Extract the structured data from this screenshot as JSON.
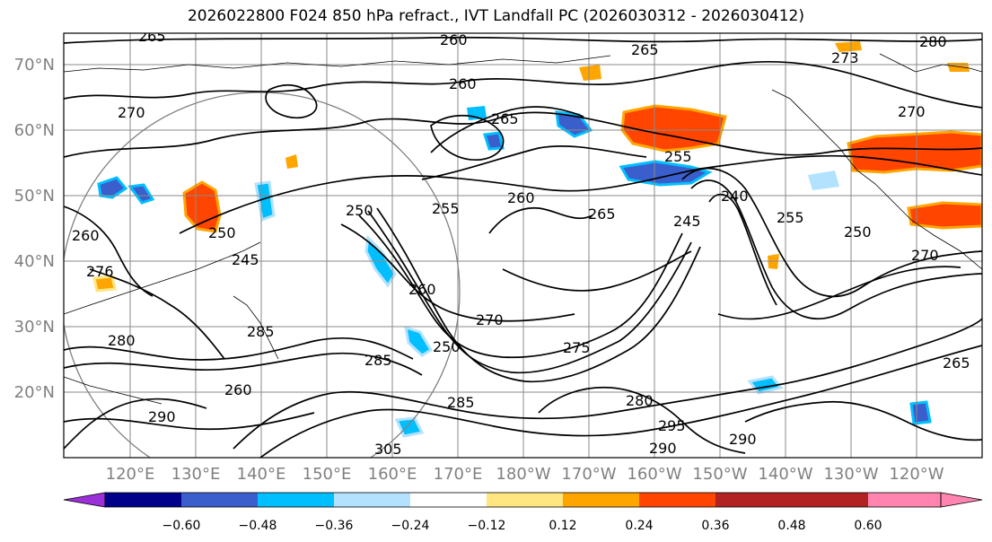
{
  "title": "2026022800 F024 850 hPa refract., IVT Landfall PC (2026030312 - 2026030412)",
  "map": {
    "lat_labels": [
      "70°N",
      "60°N",
      "50°N",
      "40°N",
      "30°N",
      "20°N"
    ],
    "lon_labels": [
      "120°E",
      "130°E",
      "140°E",
      "150°E",
      "160°E",
      "170°E",
      "180°W",
      "170°W",
      "160°W",
      "150°W",
      "140°W",
      "130°W",
      "120°W"
    ],
    "contour_labels": [
      "265",
      "260",
      "265",
      "273",
      "280",
      "260",
      "270",
      "265",
      "270",
      "255",
      "255",
      "260",
      "265",
      "240",
      "245",
      "250",
      "250",
      "255",
      "270",
      "260",
      "276",
      "245",
      "250",
      "270",
      "260",
      "250",
      "285",
      "275",
      "285",
      "280",
      "295",
      "290",
      "305",
      "260",
      "280",
      "290",
      "285",
      "290",
      "265"
    ],
    "tick_color": "#808080"
  },
  "colorbar": {
    "tick_labels": [
      "−0.60",
      "−0.48",
      "−0.36",
      "−0.24",
      "−0.12",
      "0.12",
      "0.24",
      "0.36",
      "0.48",
      "0.60"
    ],
    "colors": [
      "#9b30d9",
      "#00008b",
      "#3a5fcd",
      "#00bfff",
      "#b2e2ff",
      "#ffffff",
      "#ffe680",
      "#ffa500",
      "#ff4500",
      "#b22222",
      "#ff85b0"
    ]
  },
  "colors": {
    "contour": "#000000",
    "grid": "#8a8a8a",
    "coast": "#000000"
  }
}
